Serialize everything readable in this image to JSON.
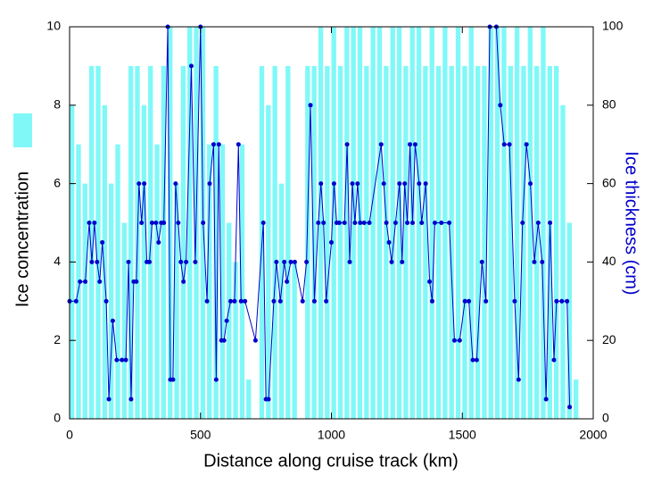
{
  "chart_data": {
    "type": "bar-line",
    "xlabel": "Distance along cruise track (km)",
    "ylabel": "Ice concentration",
    "y2label": "Ice thickness (cm)",
    "xlim": [
      0,
      2000
    ],
    "xticks": [
      0,
      500,
      1000,
      1500,
      2000
    ],
    "ylim": [
      0,
      10
    ],
    "yticks": [
      0,
      2,
      4,
      6,
      8,
      10
    ],
    "y2lim": [
      0,
      100
    ],
    "y2ticks": [
      0,
      20,
      40,
      60,
      80,
      100
    ],
    "series": [
      {
        "type": "bar",
        "color": "#80f8f8",
        "x": [
          0,
          25,
          50,
          75,
          100,
          125,
          150,
          175,
          200,
          225,
          250,
          275,
          300,
          325,
          350,
          375,
          400,
          425,
          450,
          475,
          500,
          525,
          550,
          575,
          600,
          625,
          650,
          675,
          700,
          725,
          750,
          775,
          800,
          825,
          850,
          875,
          900,
          925,
          950,
          975,
          1000,
          1025,
          1050,
          1075,
          1100,
          1125,
          1150,
          1175,
          1200,
          1225,
          1250,
          1275,
          1300,
          1325,
          1350,
          1375,
          1400,
          1425,
          1450,
          1475,
          1500,
          1525,
          1550,
          1575,
          1600,
          1625,
          1650,
          1675,
          1700,
          1725,
          1750,
          1775,
          1800,
          1825,
          1850,
          1875,
          1900,
          1925
        ],
        "values": [
          8,
          7,
          6,
          9,
          9,
          8,
          6,
          7,
          5,
          9,
          9,
          8,
          9,
          7,
          9,
          10,
          6,
          9,
          10,
          10,
          10,
          7,
          9,
          7,
          5,
          4,
          7,
          1,
          0,
          9,
          8,
          9,
          6,
          9,
          4,
          0,
          9,
          9,
          10,
          9,
          10,
          9,
          10,
          10,
          10,
          9,
          10,
          10,
          9,
          10,
          10,
          9,
          10,
          10,
          9,
          10,
          9,
          10,
          9,
          10,
          9,
          10,
          9,
          9,
          10,
          10,
          10,
          9,
          10,
          9,
          10,
          9,
          10,
          9,
          9,
          8,
          5,
          1
        ]
      },
      {
        "type": "line",
        "axis": "y2",
        "color": "#0000cc",
        "x": [
          0,
          25,
          40,
          60,
          75,
          85,
          95,
          105,
          115,
          125,
          140,
          150,
          165,
          180,
          200,
          215,
          225,
          235,
          245,
          255,
          265,
          275,
          285,
          295,
          305,
          315,
          330,
          340,
          350,
          360,
          375,
          385,
          395,
          405,
          415,
          425,
          435,
          445,
          465,
          480,
          500,
          510,
          525,
          535,
          550,
          560,
          570,
          580,
          590,
          600,
          615,
          630,
          645,
          655,
          670,
          710,
          740,
          750,
          760,
          780,
          790,
          805,
          820,
          830,
          845,
          860,
          890,
          905,
          920,
          935,
          950,
          960,
          970,
          980,
          1000,
          1010,
          1020,
          1030,
          1050,
          1060,
          1070,
          1080,
          1090,
          1100,
          1110,
          1125,
          1145,
          1190,
          1200,
          1210,
          1220,
          1230,
          1245,
          1260,
          1270,
          1280,
          1290,
          1300,
          1310,
          1320,
          1335,
          1345,
          1360,
          1375,
          1385,
          1395,
          1420,
          1450,
          1470,
          1490,
          1510,
          1525,
          1540,
          1555,
          1575,
          1590,
          1605,
          1630,
          1645,
          1660,
          1680,
          1700,
          1715,
          1730,
          1745,
          1760,
          1775,
          1790,
          1805,
          1820,
          1835,
          1850,
          1860,
          1880,
          1900,
          1910
        ],
        "values": [
          30,
          30,
          35,
          35,
          50,
          40,
          50,
          40,
          35,
          45,
          30,
          5,
          25,
          15,
          15,
          15,
          40,
          5,
          35,
          35,
          60,
          50,
          60,
          40,
          40,
          50,
          50,
          45,
          50,
          50,
          100,
          10,
          10,
          60,
          50,
          40,
          35,
          40,
          90,
          40,
          100,
          50,
          30,
          60,
          70,
          10,
          70,
          20,
          20,
          25,
          30,
          30,
          70,
          30,
          30,
          20,
          50,
          5,
          5,
          30,
          40,
          30,
          40,
          35,
          40,
          40,
          30,
          40,
          80,
          30,
          50,
          60,
          50,
          30,
          45,
          60,
          50,
          50,
          50,
          70,
          40,
          60,
          50,
          60,
          50,
          50,
          50,
          70,
          60,
          50,
          45,
          40,
          50,
          60,
          40,
          60,
          50,
          70,
          50,
          70,
          60,
          50,
          60,
          35,
          30,
          50,
          50,
          50,
          20,
          20,
          30,
          30,
          15,
          15,
          40,
          30,
          100,
          100,
          80,
          70,
          70,
          30,
          10,
          50,
          70,
          60,
          40,
          50,
          40,
          5,
          50,
          15,
          30,
          30,
          30,
          3
        ]
      }
    ]
  }
}
